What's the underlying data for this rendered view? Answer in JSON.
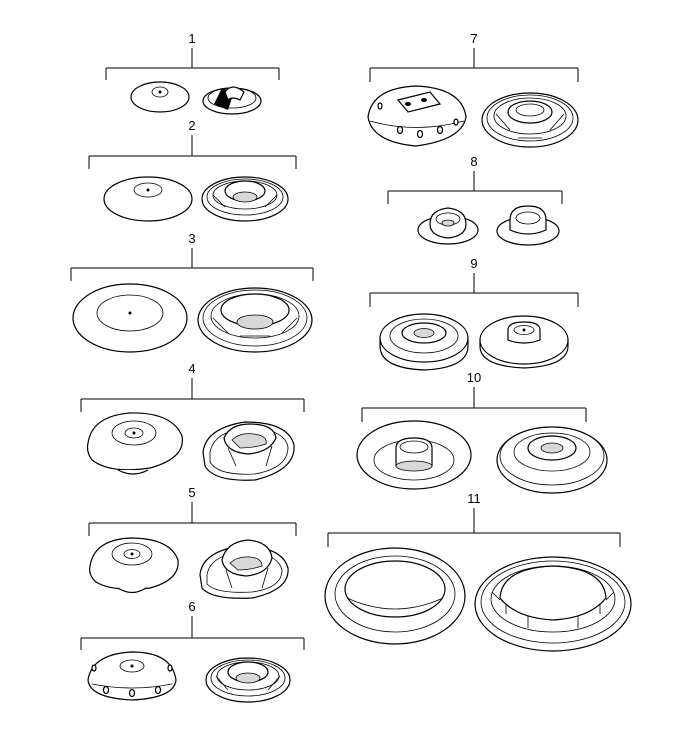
{
  "diagram": {
    "groups": [
      {
        "id": "1",
        "label": "1"
      },
      {
        "id": "2",
        "label": "2"
      },
      {
        "id": "3",
        "label": "3"
      },
      {
        "id": "4",
        "label": "4"
      },
      {
        "id": "5",
        "label": "5"
      },
      {
        "id": "6",
        "label": "6"
      },
      {
        "id": "7",
        "label": "7"
      },
      {
        "id": "8",
        "label": "8"
      },
      {
        "id": "9",
        "label": "9"
      },
      {
        "id": "10",
        "label": "10"
      },
      {
        "id": "11",
        "label": "11"
      }
    ]
  }
}
